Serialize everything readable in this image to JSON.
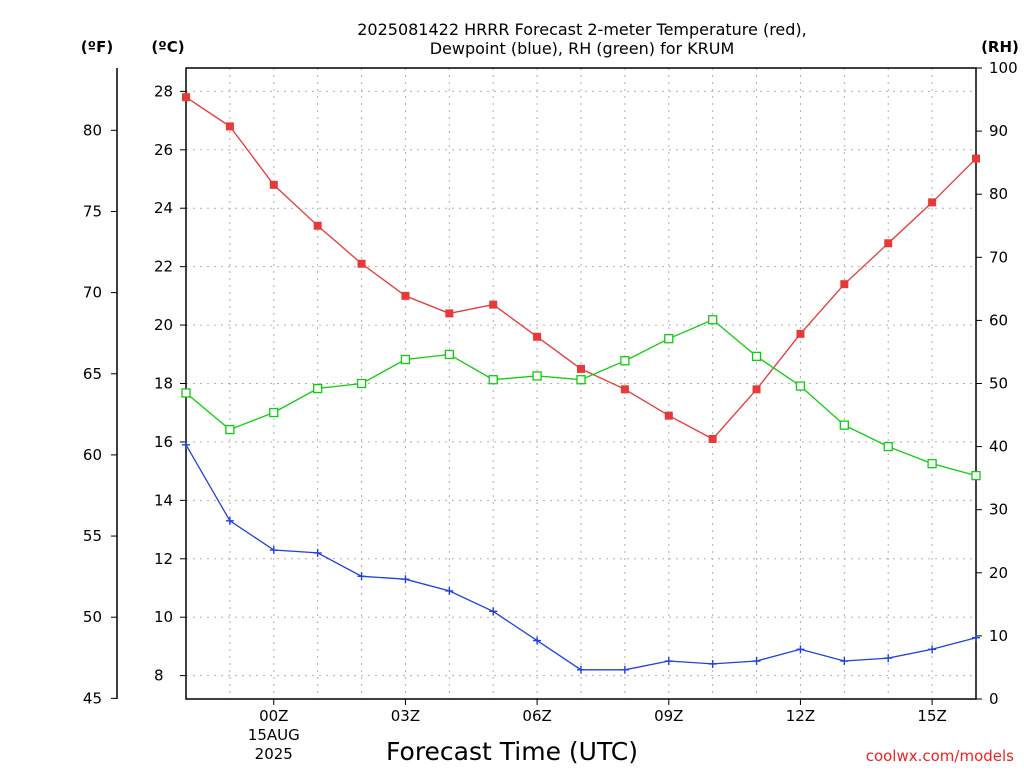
{
  "chart_data": {
    "type": "line",
    "title_line1": "2025081422 HRRR Forecast 2-meter Temperature (red),",
    "title_line2": "Dewpoint (blue), RH (green) for KRUM",
    "xlabel": "Forecast Time (UTC)",
    "credit": "coolwx.com/models",
    "unit_f": "(ºF)",
    "unit_c": "(ºC)",
    "unit_rh": "(RH)",
    "x_hours": [
      -2,
      -1,
      0,
      1,
      2,
      3,
      4,
      5,
      6,
      7,
      8,
      9,
      10,
      11,
      12,
      13,
      14,
      15,
      16
    ],
    "xlim": [
      -2,
      16
    ],
    "x_tick_labels": [
      {
        "hour": 0,
        "label": "00Z"
      },
      {
        "hour": 3,
        "label": "03Z"
      },
      {
        "hour": 6,
        "label": "06Z"
      },
      {
        "hour": 9,
        "label": "09Z"
      },
      {
        "hour": 12,
        "label": "12Z"
      },
      {
        "hour": 15,
        "label": "15Z"
      }
    ],
    "date_label": [
      "15AUG",
      "2025"
    ],
    "date_label_hour": 0,
    "y_c_lim": [
      7.2,
      28.8
    ],
    "y_c_ticks": [
      8,
      10,
      12,
      14,
      16,
      18,
      20,
      22,
      24,
      26,
      28
    ],
    "y_f_ticks": [
      45,
      50,
      55,
      60,
      65,
      70,
      75,
      80
    ],
    "y_rh_lim": [
      0,
      100
    ],
    "y_rh_ticks": [
      0,
      10,
      20,
      30,
      40,
      50,
      60,
      70,
      80,
      90,
      100
    ],
    "grid": true,
    "colors": {
      "temperature": "#e83838",
      "dewpoint": "#2040e0",
      "rh": "#10cc10"
    },
    "series": [
      {
        "name": "Temperature",
        "key": "temperature",
        "unit": "C",
        "marker": "filled-square",
        "values": [
          27.8,
          26.8,
          24.8,
          23.4,
          22.1,
          21.0,
          20.4,
          20.7,
          19.6,
          18.5,
          17.8,
          16.9,
          16.1,
          17.8,
          19.7,
          21.4,
          22.8,
          24.2,
          25.7
        ]
      },
      {
        "name": "Dewpoint",
        "key": "dewpoint",
        "unit": "C",
        "marker": "plus",
        "values": [
          15.9,
          13.3,
          12.3,
          12.2,
          11.4,
          11.3,
          10.9,
          10.2,
          9.2,
          8.2,
          8.2,
          8.5,
          8.4,
          8.5,
          8.9,
          8.5,
          8.6,
          8.9,
          9.3
        ]
      },
      {
        "name": "RH",
        "key": "rh",
        "unit": "%",
        "marker": "open-square",
        "values": [
          48.5,
          42.7,
          45.4,
          49.2,
          50.0,
          53.8,
          54.6,
          50.6,
          51.2,
          50.6,
          53.6,
          57.1,
          60.1,
          54.3,
          49.6,
          43.4,
          40.0,
          37.3,
          35.4
        ]
      }
    ]
  }
}
